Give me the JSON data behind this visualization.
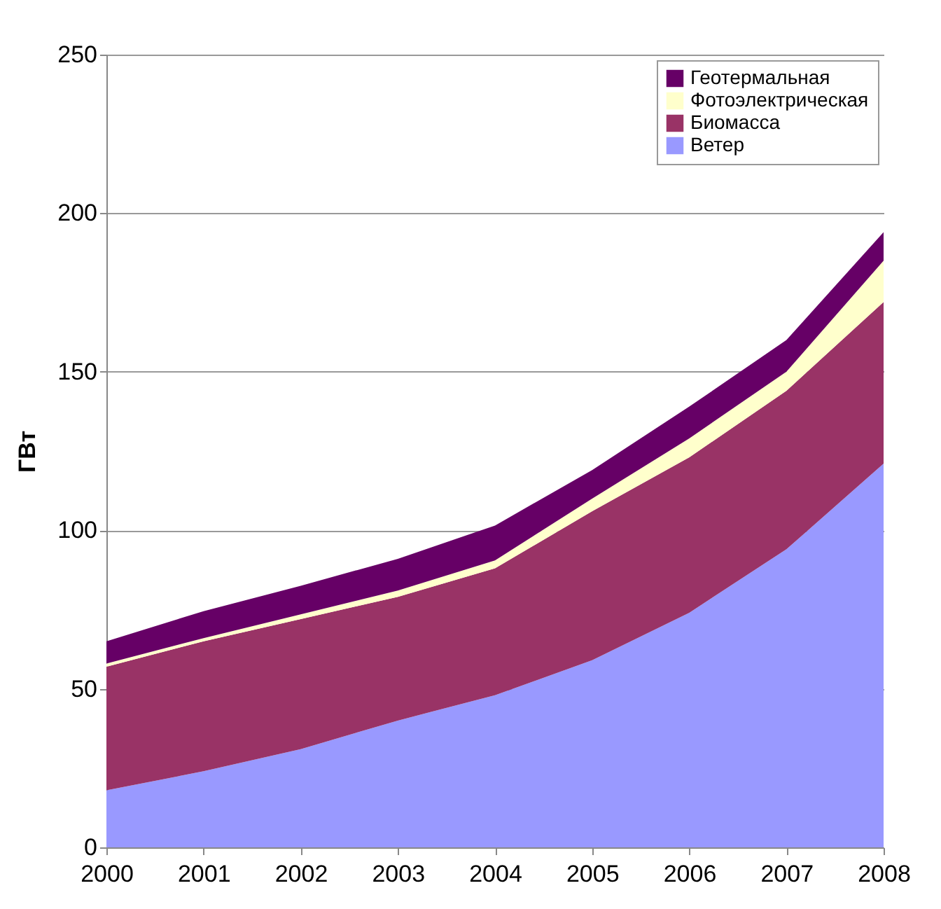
{
  "chart_data": {
    "type": "area",
    "stacked": true,
    "ylabel": "ГВт",
    "categories": [
      "2000",
      "2001",
      "2002",
      "2003",
      "2004",
      "2005",
      "2006",
      "2007",
      "2008"
    ],
    "series": [
      {
        "name": "Ветер",
        "color": "#9999ff",
        "values": [
          18,
          24,
          31,
          40,
          48,
          59,
          74,
          94,
          121
        ]
      },
      {
        "name": "Биомасса",
        "color": "#993366",
        "values": [
          39,
          41,
          41,
          39,
          40,
          47,
          49,
          50,
          51
        ]
      },
      {
        "name": "Фотоэлектрическая",
        "color": "#ffffcc",
        "values": [
          1,
          1,
          1.5,
          2,
          2.5,
          4,
          6,
          6,
          13
        ]
      },
      {
        "name": "Геотермальная",
        "color": "#660066",
        "values": [
          7,
          8.5,
          9,
          10,
          11,
          9,
          10,
          10,
          9
        ]
      }
    ],
    "ylim": [
      0,
      250
    ],
    "yticks": [
      0,
      50,
      100,
      150,
      200,
      250
    ],
    "grid": "y",
    "legend": "top right"
  }
}
